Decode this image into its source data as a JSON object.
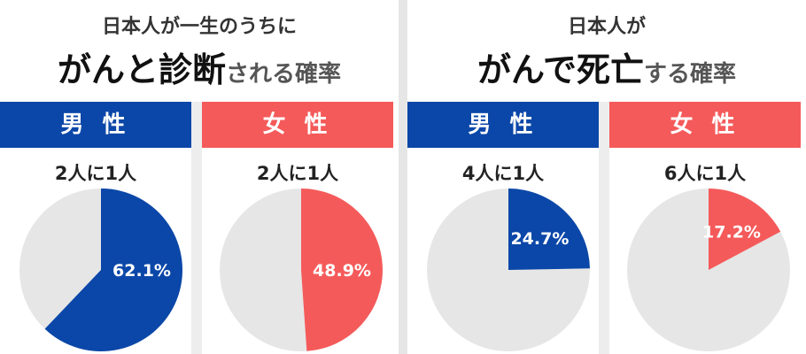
{
  "colors": {
    "male": "#0b47a8",
    "female": "#f55a5a",
    "rest": "#e6e6e6"
  },
  "panels": [
    {
      "title_small": "日本人が一生のうちに",
      "title_big_strong": "がんと診断",
      "title_big_rest": "される確率",
      "charts": [
        {
          "gender": "男 性",
          "ratio": "2人に1人",
          "label": "62.1%",
          "value": 62.1,
          "color": "male"
        },
        {
          "gender": "女 性",
          "ratio": "2人に1人",
          "label": "48.9%",
          "value": 48.9,
          "color": "female"
        }
      ]
    },
    {
      "title_small": "日本人が",
      "title_big_strong": "がんで死亡",
      "title_big_rest": "する確率",
      "charts": [
        {
          "gender": "男 性",
          "ratio": "4人に1人",
          "label": "24.7%",
          "value": 24.7,
          "color": "male"
        },
        {
          "gender": "女 性",
          "ratio": "6人に1人",
          "label": "17.2%",
          "value": 17.2,
          "color": "female"
        }
      ]
    }
  ],
  "chart_data": [
    {
      "type": "pie",
      "title": "日本人が一生のうちにがんと診断される確率",
      "categories": [
        "男 性"
      ],
      "values": [
        62.1
      ]
    },
    {
      "type": "pie",
      "title": "日本人が一生のうちにがんと診断される確率",
      "categories": [
        "女 性"
      ],
      "values": [
        48.9
      ]
    },
    {
      "type": "pie",
      "title": "日本人ががんで死亡する確率",
      "categories": [
        "男 性"
      ],
      "values": [
        24.7
      ]
    },
    {
      "type": "pie",
      "title": "日本人ががんで死亡する確率",
      "categories": [
        "女 性"
      ],
      "values": [
        17.2
      ]
    }
  ]
}
